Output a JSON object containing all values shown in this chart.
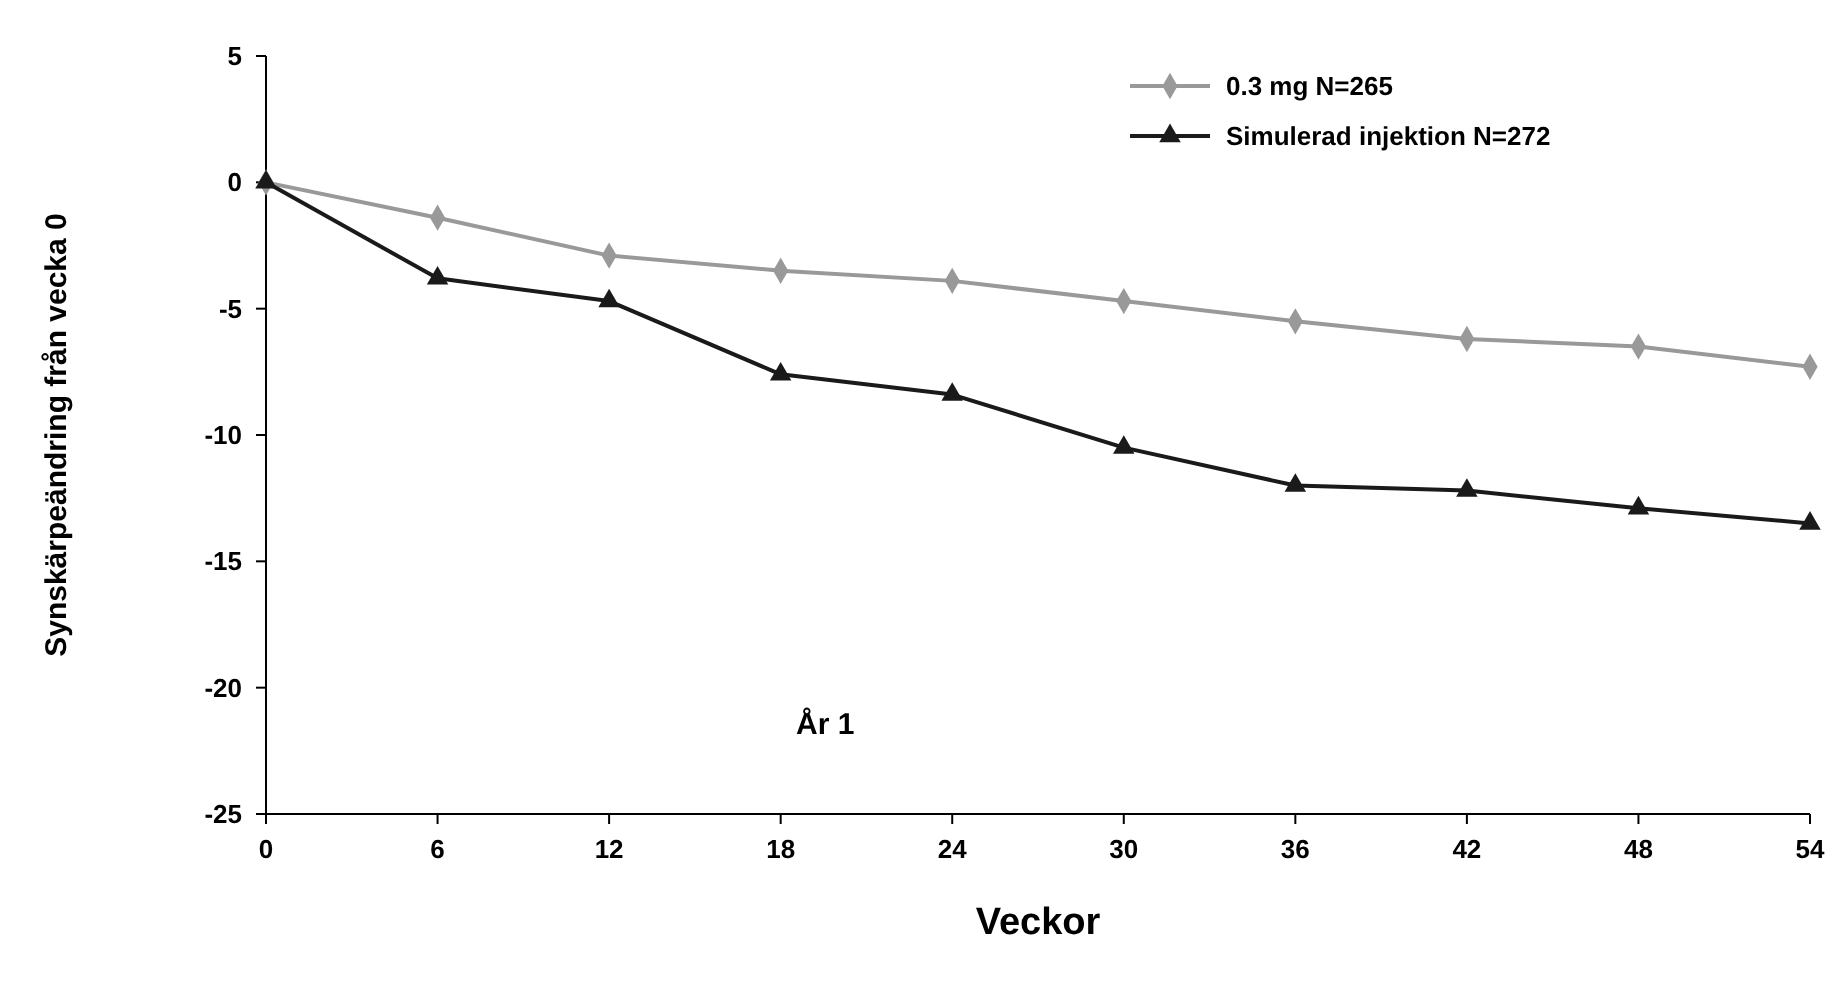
{
  "chart_data": {
    "type": "line",
    "xlabel": "Veckor",
    "ylabel": "Synskärpeändring från vecka 0",
    "x": [
      0,
      6,
      12,
      18,
      24,
      30,
      36,
      42,
      48,
      54
    ],
    "xlim": [
      0,
      54
    ],
    "xticks": [
      0,
      6,
      12,
      18,
      24,
      30,
      36,
      42,
      48,
      54
    ],
    "ylim": [
      -25,
      5
    ],
    "yticks": [
      -25,
      -20,
      -15,
      -10,
      -5,
      0,
      5
    ],
    "series": [
      {
        "name": "0.3 mg N=265",
        "color": "#999999",
        "marker": "diamond",
        "values": [
          0,
          -1.4,
          -2.9,
          -3.5,
          -3.9,
          -4.7,
          -5.5,
          -6.2,
          -6.5,
          -7.3
        ]
      },
      {
        "name": "Simulerad injektion N=272",
        "color": "#1a1a1a",
        "marker": "triangle",
        "values": [
          0,
          -3.8,
          -4.7,
          -7.6,
          -8.4,
          -10.5,
          -12.0,
          -12.2,
          -12.9,
          -13.5
        ]
      }
    ],
    "annotations": [
      "År 1"
    ],
    "legend": "top right",
    "grid": false,
    "line_style": "solid"
  }
}
